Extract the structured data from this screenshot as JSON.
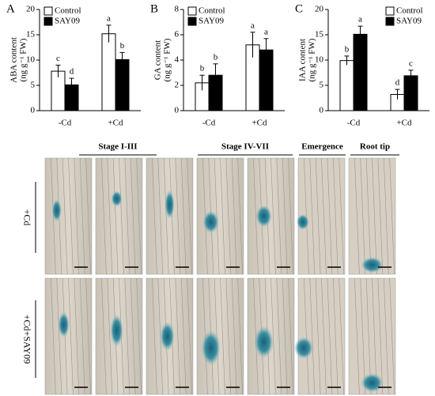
{
  "chart_data": [
    {
      "type": "bar",
      "panel": "A",
      "ylabel": [
        "ABA content",
        "(ng g⁻¹ FW)"
      ],
      "categories": [
        "-Cd",
        "+Cd"
      ],
      "series": [
        {
          "name": "Control",
          "color": "#ffffff",
          "values": [
            7.8,
            15.2
          ],
          "errors": [
            1.2,
            1.7
          ],
          "significance": [
            "c",
            "a"
          ]
        },
        {
          "name": "SAY09",
          "color": "#000000",
          "values": [
            5.1,
            10.1
          ],
          "errors": [
            1.3,
            1.4
          ],
          "significance": [
            "d",
            "b"
          ]
        }
      ],
      "ylim": [
        0,
        20
      ],
      "yticks": [
        0,
        5,
        10,
        15,
        20
      ],
      "legend": "upper left"
    },
    {
      "type": "bar",
      "panel": "B",
      "ylabel": [
        "GA content",
        "(ng g⁻¹ FW)"
      ],
      "categories": [
        "-Cd",
        "+Cd"
      ],
      "series": [
        {
          "name": "Control",
          "color": "#ffffff",
          "values": [
            2.2,
            5.2
          ],
          "errors": [
            0.6,
            1.0
          ],
          "significance": [
            "b",
            "a"
          ]
        },
        {
          "name": "SAY09",
          "color": "#000000",
          "values": [
            2.8,
            4.8
          ],
          "errors": [
            0.9,
            0.9
          ],
          "significance": [
            "b",
            "a"
          ]
        }
      ],
      "ylim": [
        0,
        8
      ],
      "yticks": [
        0,
        2,
        4,
        6,
        8
      ],
      "legend": "upper left"
    },
    {
      "type": "bar",
      "panel": "C",
      "ylabel": [
        "IAA content",
        "(ng g⁻¹ FW)"
      ],
      "categories": [
        "-Cd",
        "+Cd"
      ],
      "series": [
        {
          "name": "Control",
          "color": "#ffffff",
          "values": [
            9.9,
            3.2
          ],
          "errors": [
            0.9,
            1.0
          ],
          "significance": [
            "b",
            "d"
          ]
        },
        {
          "name": "SAY09",
          "color": "#000000",
          "values": [
            15.1,
            6.9
          ],
          "errors": [
            1.6,
            1.1
          ],
          "significance": [
            "a",
            "c"
          ]
        }
      ],
      "ylim": [
        0,
        20
      ],
      "yticks": [
        0,
        5,
        10,
        15,
        20
      ],
      "legend": "upper right"
    }
  ],
  "image_panel": {
    "column_groups": [
      "Stage I-III",
      "Stage IV-VII",
      "Emergence",
      "Root tip"
    ],
    "rows": [
      "+Cd",
      "+Cd+SAY09"
    ]
  }
}
